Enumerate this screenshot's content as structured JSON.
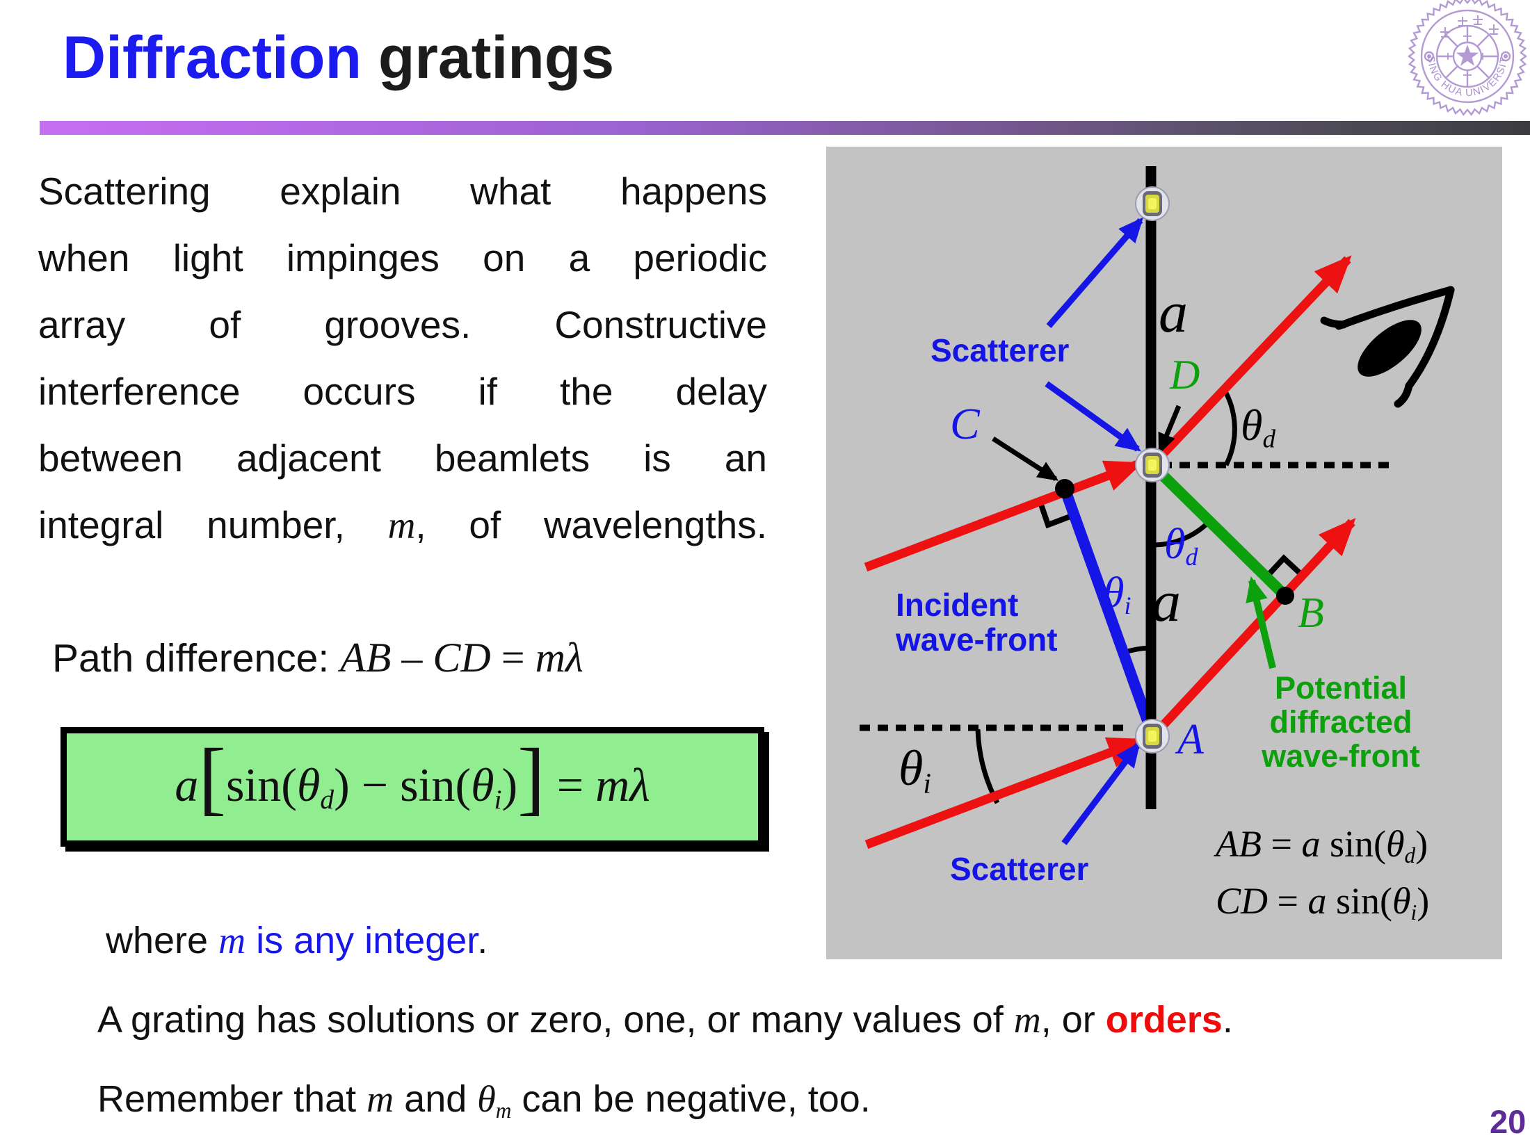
{
  "title": {
    "part1": "Diffraction",
    "part2": " gratings"
  },
  "page_number": "20",
  "paragraph": {
    "lines": [
      [
        "Scattering",
        "explain",
        "what",
        "happens"
      ],
      [
        "when",
        "light",
        "impinges",
        "on",
        "a",
        "periodic"
      ],
      [
        "array",
        "of",
        "grooves.",
        "Constructive"
      ],
      [
        "interference",
        "occurs",
        "if",
        "the",
        "delay"
      ],
      [
        "between",
        "adjacent",
        "beamlets",
        "is",
        "an"
      ],
      [
        "integral",
        "number,",
        "*m*,",
        "of",
        "wavelengths."
      ]
    ]
  },
  "path_difference": {
    "label": "Path difference: ",
    "math": [
      {
        "t": "AB",
        "s": "it"
      },
      {
        "t": " – ",
        "s": "rm"
      },
      {
        "t": "CD",
        "s": "it"
      },
      {
        "t": " = ",
        "s": "rm"
      },
      {
        "t": "m",
        "s": "it"
      },
      {
        "t": "λ",
        "s": "it"
      }
    ]
  },
  "formula": {
    "segments": [
      {
        "t": "a",
        "s": "it"
      },
      {
        "t": "[",
        "s": "bk"
      },
      {
        "t": "sin(",
        "s": "rm"
      },
      {
        "t": "θ",
        "s": "it",
        "sub": "d"
      },
      {
        "t": ")",
        "s": "rm"
      },
      {
        "t": " − ",
        "s": "rm"
      },
      {
        "t": "sin(",
        "s": "rm"
      },
      {
        "t": "θ",
        "s": "it",
        "sub": "i"
      },
      {
        "t": ")",
        "s": "rm"
      },
      {
        "t": "]",
        "s": "bk"
      },
      {
        "t": " = ",
        "s": "rm"
      },
      {
        "t": "m",
        "s": "it"
      },
      {
        "t": "λ",
        "s": "it"
      }
    ]
  },
  "where_line": {
    "segments": [
      {
        "t": "where ",
        "s": "sans"
      },
      {
        "t": "m",
        "s": "serif-it-blue"
      },
      {
        "t": " is any integer",
        "s": "sans-blue"
      },
      {
        "t": ".",
        "s": "sans"
      }
    ]
  },
  "orders_line": {
    "segments": [
      {
        "t": "A grating has solutions or zero, one, or many values of ",
        "s": "sans"
      },
      {
        "t": "m",
        "s": "it"
      },
      {
        "t": ", or ",
        "s": "sans"
      },
      {
        "t": "orders",
        "s": "red-bold"
      },
      {
        "t": ".",
        "s": "sans"
      }
    ]
  },
  "remember_line": {
    "segments": [
      {
        "t": "Remember that ",
        "s": "sans"
      },
      {
        "t": "m",
        "s": "it"
      },
      {
        "t": " and ",
        "s": "sans"
      },
      {
        "t": "θ",
        "s": "it",
        "sub": "m"
      },
      {
        "t": " can be negative, too.",
        "s": "sans"
      }
    ]
  },
  "diagram": {
    "scatterer_top": "Scatterer",
    "scatterer_bottom": "Scatterer",
    "incident_line1": "Incident",
    "incident_line2": "wave-front",
    "potential_line1": "Potential",
    "potential_line2": "diffracted",
    "potential_line3": "wave-front",
    "label_a_top": "a",
    "label_a_bottom": "a",
    "label_A": "A",
    "label_B": "B",
    "label_C": "C",
    "label_D": "D",
    "theta_d": {
      "segments": [
        {
          "t": "θ",
          "s": "it",
          "sub": "d"
        }
      ]
    },
    "theta_i": {
      "segments": [
        {
          "t": "θ",
          "s": "it",
          "sub": "i"
        }
      ]
    },
    "eq_ab": {
      "segments": [
        {
          "t": "AB",
          "s": "it"
        },
        {
          "t": " = ",
          "s": "rm"
        },
        {
          "t": "a",
          "s": "it"
        },
        {
          "t": " sin(",
          "s": "rm"
        },
        {
          "t": "θ",
          "s": "it",
          "sub": "d"
        },
        {
          "t": ")",
          "s": "rm"
        }
      ]
    },
    "eq_cd": {
      "segments": [
        {
          "t": "CD",
          "s": "it"
        },
        {
          "t": " = ",
          "s": "rm"
        },
        {
          "t": "a",
          "s": "it"
        },
        {
          "t": " sin(",
          "s": "rm"
        },
        {
          "t": "θ",
          "s": "it",
          "sub": "i"
        },
        {
          "t": ")",
          "s": "rm"
        }
      ]
    }
  },
  "seal": {
    "latin_text": "TSING HUA UNIVERSITY",
    "cjk_text": "清華大學"
  },
  "colors": {
    "title_blue": "#1b1bef",
    "text_black": "#111111",
    "accent_red": "#ee1111",
    "accent_blue": "#1414e6",
    "accent_green": "#0da00d",
    "formula_box_green": "#90ee90",
    "diagram_bg": "#c3c3c3",
    "page_number_purple": "#5e2b9a",
    "seal_purple": "#b29ad2",
    "gradient_bar_left": "#c76ef0",
    "gradient_bar_right": "#3c3c40"
  }
}
